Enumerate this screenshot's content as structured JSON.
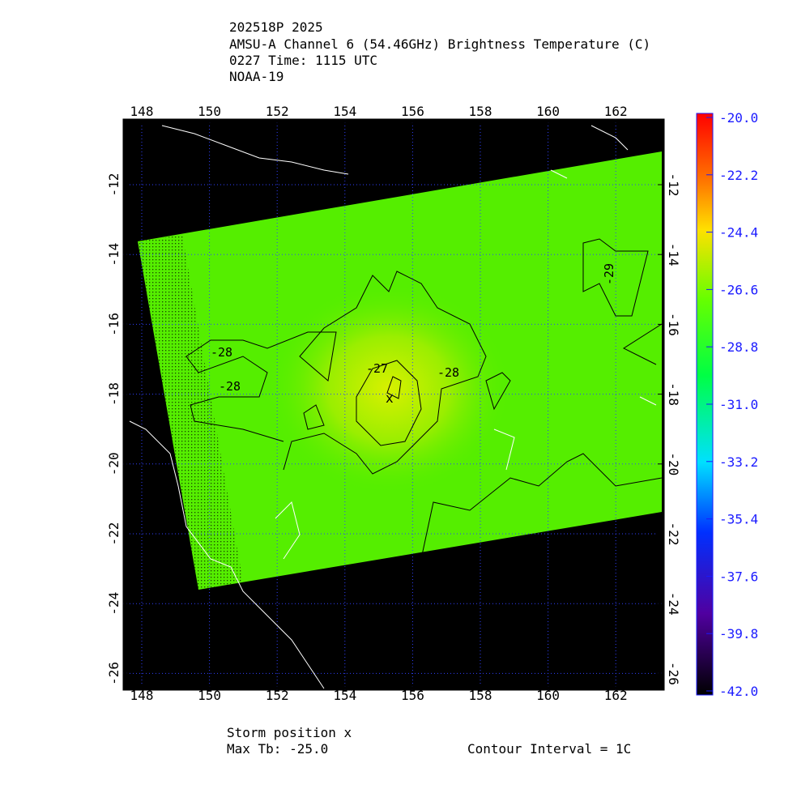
{
  "header": {
    "lines": [
      "202518P 2025",
      "AMSU-A Channel 6 (54.46GHz) Brightness Temperature (C)",
      "0227 Time: 1115 UTC",
      "NOAA-19"
    ]
  },
  "map": {
    "lon_ticks": [
      148,
      150,
      152,
      154,
      156,
      158,
      160,
      162
    ],
    "lat_ticks": [
      -12,
      -14,
      -16,
      -18,
      -20,
      -22,
      -24,
      -26
    ],
    "contour_labels": [
      "-28",
      "-28",
      "-27",
      "-28",
      "-29"
    ]
  },
  "colorbar": {
    "ticks": [
      {
        "value": -20,
        "label": "-20.0"
      },
      {
        "value": -22.2,
        "label": "-22.2"
      },
      {
        "value": -24.4,
        "label": "-24.4"
      },
      {
        "value": -26.6,
        "label": "-26.6"
      },
      {
        "value": -28.8,
        "label": "-28.8"
      },
      {
        "value": -31,
        "label": "-31.0"
      },
      {
        "value": -33.2,
        "label": "-33.2"
      },
      {
        "value": -35.4,
        "label": "-35.4"
      },
      {
        "value": -37.6,
        "label": "-37.6"
      },
      {
        "value": -39.8,
        "label": "-39.8"
      },
      {
        "value": -42,
        "label": "-42.0"
      }
    ]
  },
  "footer": {
    "storm": "Storm position x",
    "max_tb": "Max Tb: -25.0",
    "interval": "Contour Interval = 1C"
  }
}
